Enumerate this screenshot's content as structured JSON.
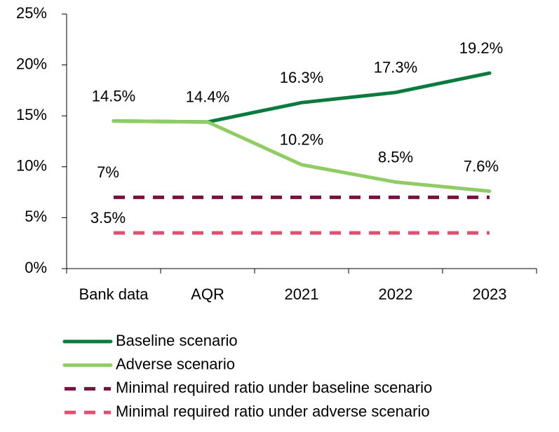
{
  "chart_data": {
    "type": "line",
    "categories": [
      "Bank data",
      "AQR",
      "2021",
      "2022",
      "2023"
    ],
    "series": [
      {
        "name": "Baseline scenario",
        "color": "#0b7a3e",
        "dash": false,
        "values": [
          14.5,
          14.4,
          16.3,
          17.3,
          19.2
        ],
        "value_labels": [
          "14.5%",
          "14.4%",
          "16.3%",
          "17.3%",
          "19.2%"
        ]
      },
      {
        "name": "Adverse scenario",
        "color": "#90cc64",
        "dash": false,
        "values": [
          14.5,
          14.4,
          10.2,
          8.5,
          7.6
        ],
        "value_labels": [
          null,
          null,
          "10.2%",
          "8.5%",
          "7.6%"
        ]
      },
      {
        "name": "Minimal required ratio under baseline scenario",
        "color": "#7a1040",
        "dash": true,
        "values": [
          7,
          7,
          7,
          7,
          7
        ],
        "value_labels": [
          "7%",
          null,
          null,
          null,
          null
        ]
      },
      {
        "name": "Minimal required ratio under adverse scenario",
        "color": "#e0506c",
        "dash": true,
        "values": [
          3.5,
          3.5,
          3.5,
          3.5,
          3.5
        ],
        "value_labels": [
          "3.5%",
          null,
          null,
          null,
          null
        ]
      }
    ],
    "ylim": [
      0,
      25
    ],
    "yticks": [
      {
        "value": 0,
        "label": "0%"
      },
      {
        "value": 5,
        "label": "5%"
      },
      {
        "value": 10,
        "label": "10%"
      },
      {
        "value": 15,
        "label": "15%"
      },
      {
        "value": 20,
        "label": "20%"
      },
      {
        "value": 25,
        "label": "25%"
      }
    ],
    "legend": "bottom"
  }
}
